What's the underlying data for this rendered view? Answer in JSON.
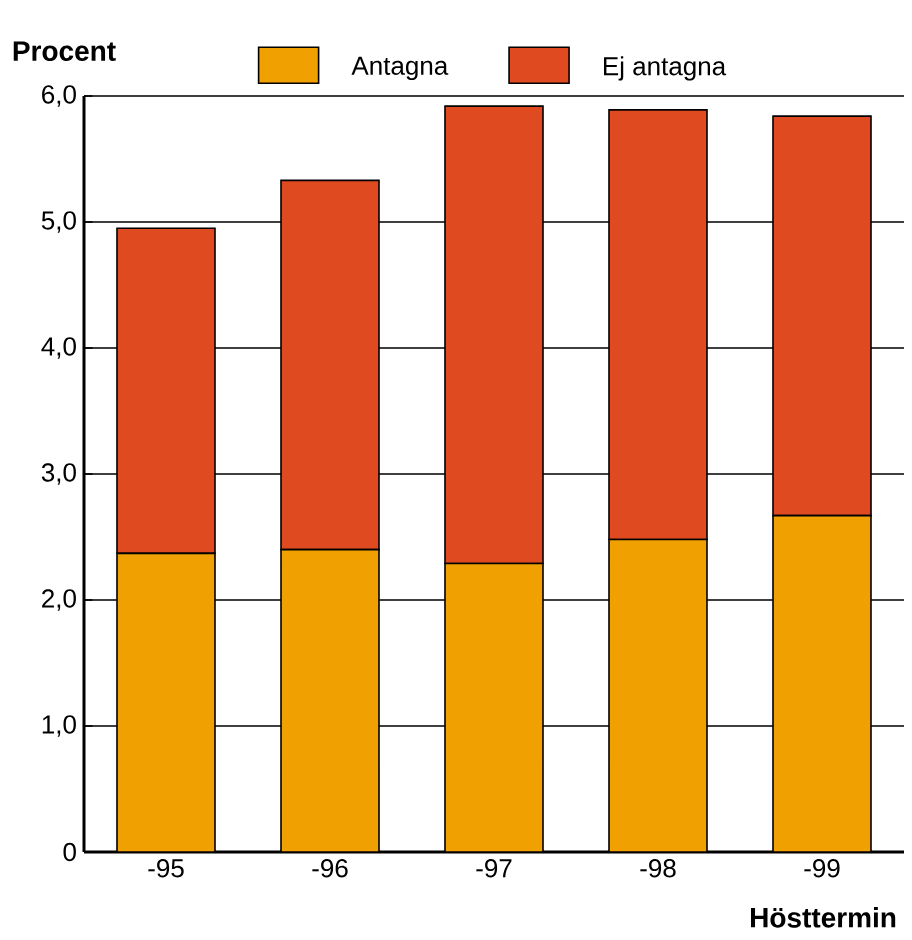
{
  "chart_data": {
    "type": "bar",
    "stacked": true,
    "xlabel": "Hösttermin",
    "ylabel": "Procent",
    "categories": [
      "-95",
      "-96",
      "-97",
      "-98",
      "-99"
    ],
    "series": [
      {
        "name": "Antagna",
        "color": "#f0a000",
        "values": [
          2.37,
          2.4,
          2.29,
          2.48,
          2.67
        ]
      },
      {
        "name": "Ej antagna",
        "color": "#e04a20",
        "values": [
          2.58,
          2.93,
          3.63,
          3.41,
          3.17
        ]
      }
    ],
    "ylim": [
      0,
      6
    ],
    "yticks": [
      {
        "value": 0,
        "label": "0"
      },
      {
        "value": 1,
        "label": "1,0"
      },
      {
        "value": 2,
        "label": "2,0"
      },
      {
        "value": 3,
        "label": "3,0"
      },
      {
        "value": 4,
        "label": "4,0"
      },
      {
        "value": 5,
        "label": "5,0"
      },
      {
        "value": 6,
        "label": "6,0"
      }
    ],
    "grid": "y",
    "legend": "top"
  }
}
